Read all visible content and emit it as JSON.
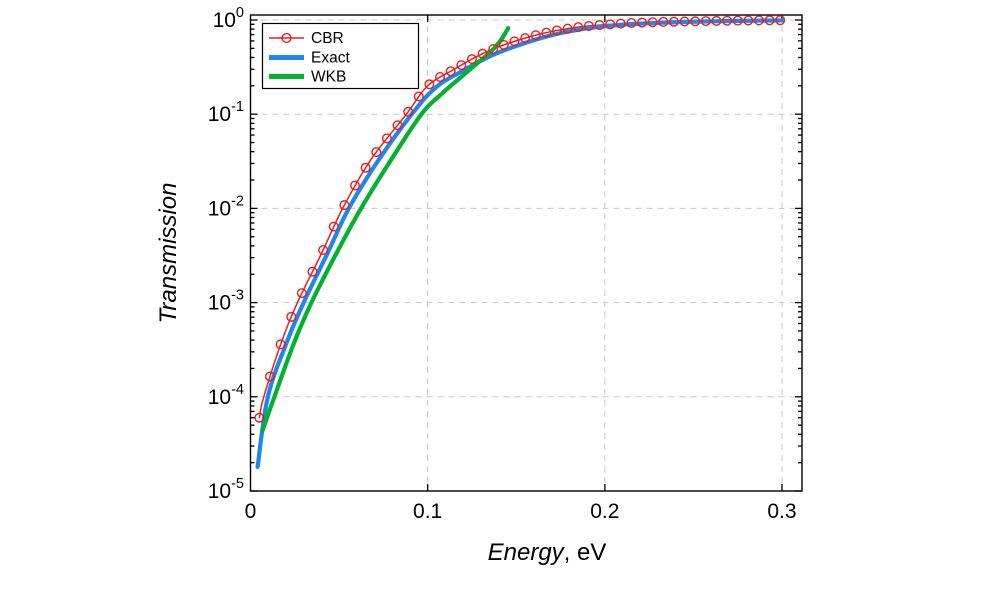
{
  "chart_data": {
    "type": "line",
    "title": "",
    "ylabel": "Transmission",
    "xlabel_main": "Energy",
    "xlabel_suffix": ", eV",
    "xlim": [
      0,
      0.3113
    ],
    "ylim_log": [
      -5,
      0.053
    ],
    "grid": {
      "on": true,
      "x_values": [
        0.1,
        0.2,
        0.3
      ],
      "y_exponents": [
        0,
        -1,
        -2,
        -3,
        -4
      ]
    },
    "x_ticks": [
      {
        "value": 0,
        "label": "0"
      },
      {
        "value": 0.1,
        "label": "0.1"
      },
      {
        "value": 0.2,
        "label": "0.2"
      },
      {
        "value": 0.3,
        "label": "0.3"
      }
    ],
    "y_ticks": [
      {
        "value_log": 0,
        "base": "10",
        "exp": "0"
      },
      {
        "value_log": -1,
        "base": "10",
        "exp": "-1"
      },
      {
        "value_log": -2,
        "base": "10",
        "exp": "-2"
      },
      {
        "value_log": -3,
        "base": "10",
        "exp": "-3"
      },
      {
        "value_log": -4,
        "base": "10",
        "exp": "-4"
      },
      {
        "value_log": -5,
        "base": "10",
        "exp": "-5"
      }
    ],
    "legend": {
      "position": "top-left",
      "border_color": "#000000",
      "background": "#ffffff"
    },
    "colors": {
      "cbr": "#ee1c1c",
      "exact": "#1d87ee",
      "wkb": "#00b22d",
      "grid": "#c8c8c8",
      "frame": "#000000"
    },
    "series": [
      {
        "name": "CBR",
        "color": "#ee1c1c",
        "style": "thin-line-with-open-circle-markers",
        "markers": {
          "x_start": 0.005,
          "x_step": 0.006,
          "x_end": 0.2995
        },
        "points": [
          [
            0.005,
            6e-05
          ],
          [
            0.0075,
            0.0001
          ],
          [
            0.017,
            0.00036
          ],
          [
            0.0265,
            0.001
          ],
          [
            0.04,
            0.0033
          ],
          [
            0.052,
            0.01
          ],
          [
            0.068,
            0.033
          ],
          [
            0.088,
            0.1
          ],
          [
            0.1,
            0.2
          ],
          [
            0.115,
            0.3
          ],
          [
            0.13,
            0.43
          ],
          [
            0.145,
            0.56
          ],
          [
            0.165,
            0.72
          ],
          [
            0.185,
            0.84
          ],
          [
            0.205,
            0.905
          ],
          [
            0.225,
            0.945
          ],
          [
            0.25,
            0.968
          ],
          [
            0.275,
            0.985
          ],
          [
            0.3,
            0.995
          ]
        ]
      },
      {
        "name": "Exact",
        "color": "#1d87ee",
        "style": "thick-line",
        "points": [
          [
            0.004,
            1.8e-05
          ],
          [
            0.0098,
            0.0001
          ],
          [
            0.02,
            0.00036
          ],
          [
            0.03,
            0.001
          ],
          [
            0.043,
            0.0032
          ],
          [
            0.0555,
            0.01
          ],
          [
            0.072,
            0.032
          ],
          [
            0.091,
            0.1
          ],
          [
            0.105,
            0.195
          ],
          [
            0.12,
            0.29
          ],
          [
            0.135,
            0.41
          ],
          [
            0.15,
            0.53
          ],
          [
            0.17,
            0.69
          ],
          [
            0.19,
            0.815
          ],
          [
            0.21,
            0.89
          ],
          [
            0.23,
            0.932
          ],
          [
            0.25,
            0.958
          ],
          [
            0.275,
            0.978
          ],
          [
            0.3,
            0.99
          ]
        ]
      },
      {
        "name": "WKB",
        "color": "#00b22d",
        "style": "thick-line",
        "points": [
          [
            0.0068,
            4.4e-05
          ],
          [
            0.0135,
            0.0001
          ],
          [
            0.024,
            0.00035
          ],
          [
            0.0344,
            0.001
          ],
          [
            0.048,
            0.0032
          ],
          [
            0.0624,
            0.01
          ],
          [
            0.079,
            0.032
          ],
          [
            0.0965,
            0.1
          ],
          [
            0.108,
            0.165
          ],
          [
            0.118,
            0.24
          ],
          [
            0.127,
            0.335
          ],
          [
            0.135,
            0.45
          ],
          [
            0.141,
            0.6
          ],
          [
            0.1455,
            0.82
          ]
        ]
      }
    ]
  }
}
